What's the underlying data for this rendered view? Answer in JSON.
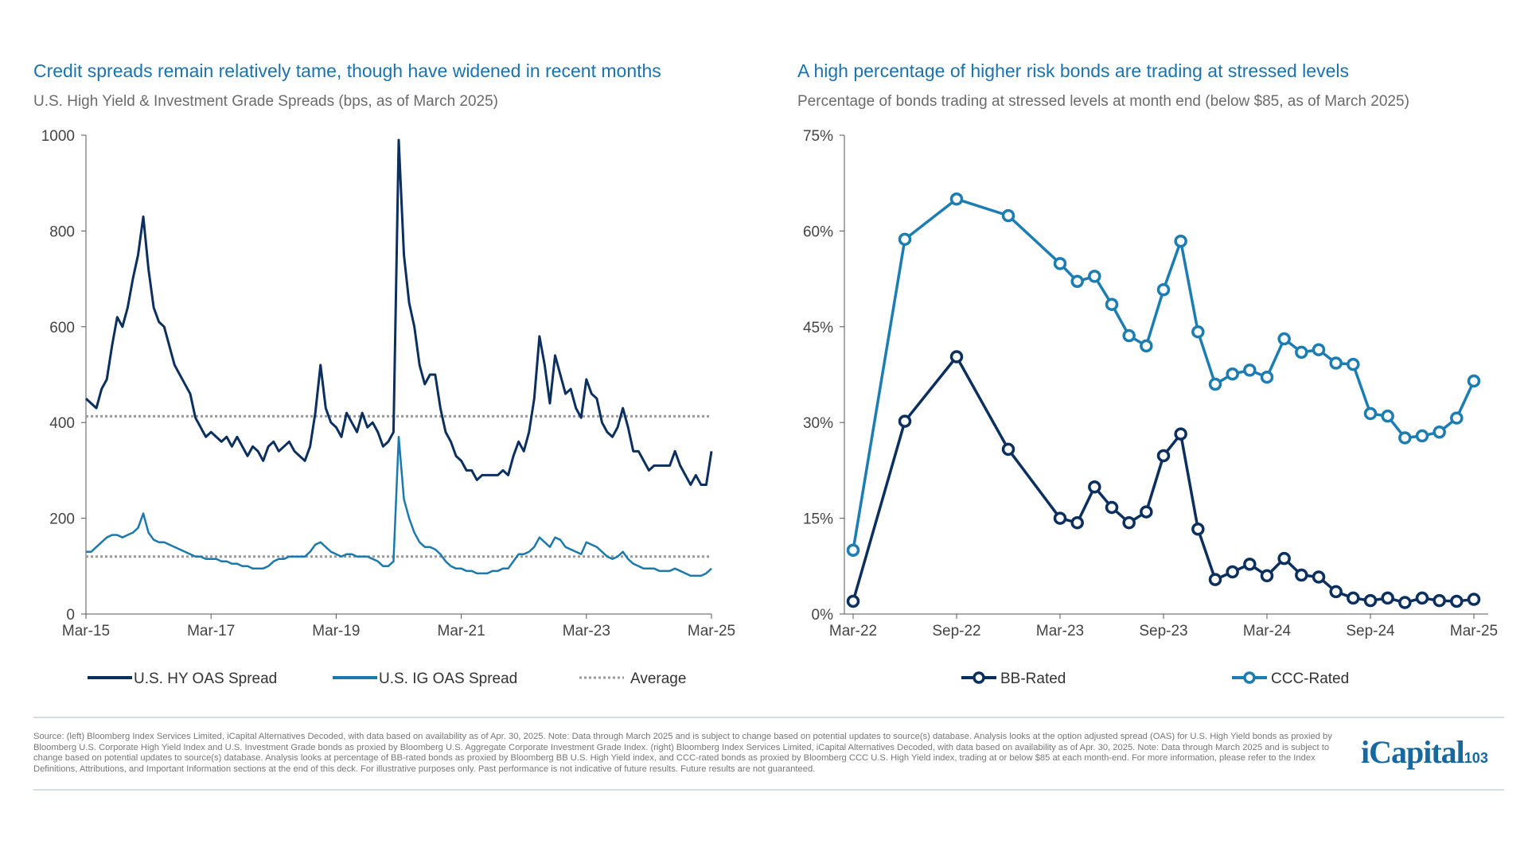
{
  "colors": {
    "hy": "#0b2f5f",
    "ig": "#1b79ad",
    "avg": "#9a9a9a",
    "bb": "#0b2f5f",
    "ccc": "#1b7db2",
    "title": "#1a72b0"
  },
  "chart_data": [
    {
      "type": "line",
      "title": "Credit spreads remain relatively tame, though have widened in recent months",
      "subtitle": "U.S. High Yield & Investment Grade Spreads (bps, as of March 2025)",
      "x_start": "Mar-15",
      "x_end": "Mar-25",
      "frequency": "monthly",
      "xticks": [
        "Mar-15",
        "Mar-17",
        "Mar-19",
        "Mar-21",
        "Mar-23",
        "Mar-25"
      ],
      "yticks": [
        "0",
        "200",
        "400",
        "600",
        "800",
        "1000"
      ],
      "ylim": [
        0,
        1000
      ],
      "legend_position": "bottom",
      "series": [
        {
          "name": "U.S. HY OAS Spread",
          "values": [
            450,
            440,
            430,
            470,
            490,
            560,
            620,
            600,
            640,
            700,
            750,
            830,
            720,
            640,
            610,
            600,
            560,
            520,
            500,
            480,
            460,
            410,
            390,
            370,
            380,
            370,
            360,
            370,
            350,
            370,
            350,
            330,
            350,
            340,
            320,
            350,
            360,
            340,
            350,
            360,
            340,
            330,
            320,
            350,
            420,
            520,
            430,
            400,
            390,
            370,
            420,
            400,
            380,
            420,
            390,
            400,
            380,
            350,
            360,
            380,
            990,
            750,
            650,
            600,
            520,
            480,
            500,
            500,
            430,
            380,
            360,
            330,
            320,
            300,
            300,
            280,
            290,
            290,
            290,
            290,
            300,
            290,
            330,
            360,
            340,
            380,
            450,
            580,
            520,
            440,
            540,
            500,
            460,
            470,
            430,
            410,
            490,
            460,
            450,
            400,
            380,
            370,
            390,
            430,
            390,
            340,
            340,
            320,
            300,
            310,
            310,
            310,
            310,
            340,
            310,
            290,
            270,
            290,
            270,
            270,
            340
          ]
        },
        {
          "name": "U.S. IG OAS Spread",
          "values": [
            130,
            130,
            140,
            150,
            160,
            165,
            165,
            160,
            165,
            170,
            180,
            210,
            170,
            155,
            150,
            150,
            145,
            140,
            135,
            130,
            125,
            120,
            120,
            115,
            115,
            115,
            110,
            110,
            105,
            105,
            100,
            100,
            95,
            95,
            95,
            100,
            110,
            115,
            115,
            120,
            120,
            120,
            120,
            130,
            145,
            150,
            140,
            130,
            125,
            120,
            125,
            125,
            120,
            120,
            120,
            115,
            110,
            100,
            100,
            110,
            370,
            240,
            200,
            170,
            150,
            140,
            140,
            135,
            125,
            110,
            100,
            95,
            95,
            90,
            90,
            85,
            85,
            85,
            90,
            90,
            95,
            95,
            110,
            125,
            125,
            130,
            140,
            160,
            150,
            140,
            160,
            155,
            140,
            135,
            130,
            125,
            150,
            145,
            140,
            130,
            120,
            115,
            120,
            130,
            115,
            105,
            100,
            95,
            95,
            95,
            90,
            90,
            90,
            95,
            90,
            85,
            80,
            80,
            80,
            85,
            95
          ]
        },
        {
          "name": "Average",
          "hy_average": 413,
          "ig_average": 120
        }
      ]
    },
    {
      "type": "line",
      "title": "A high percentage of higher risk bonds are trading at stressed levels",
      "subtitle": "Percentage of bonds trading at stressed levels at month end (below $85, as of March 2025)",
      "xticks": [
        "Mar-22",
        "Sep-22",
        "Mar-23",
        "Sep-23",
        "Mar-24",
        "Sep-24",
        "Mar-25"
      ],
      "yticks": [
        "0%",
        "15%",
        "30%",
        "45%",
        "60%",
        "75%"
      ],
      "ylim": [
        0,
        75
      ],
      "legend_position": "bottom",
      "x": [
        "Mar-22",
        "Jun-22",
        "Sep-22",
        "Dec-22",
        "Mar-23",
        "Apr-23",
        "May-23",
        "Jun-23",
        "Jul-23",
        "Aug-23",
        "Sep-23",
        "Oct-23",
        "Nov-23",
        "Dec-23",
        "Jan-24",
        "Feb-24",
        "Mar-24",
        "Apr-24",
        "May-24",
        "Jun-24",
        "Jul-24",
        "Aug-24",
        "Sep-24",
        "Oct-24",
        "Nov-24",
        "Dec-24",
        "Jan-25",
        "Feb-25",
        "Mar-25"
      ],
      "x_month_index": [
        0,
        3,
        6,
        9,
        12,
        13,
        14,
        15,
        16,
        17,
        18,
        19,
        20,
        21,
        22,
        23,
        24,
        25,
        26,
        27,
        28,
        29,
        30,
        31,
        32,
        33,
        34,
        35,
        36
      ],
      "series": [
        {
          "name": "BB-Rated",
          "values": [
            2.0,
            30.2,
            40.3,
            25.8,
            15.0,
            14.3,
            19.9,
            16.7,
            14.3,
            16.0,
            24.8,
            28.2,
            13.3,
            5.4,
            6.6,
            7.8,
            6.0,
            8.7,
            6.1,
            5.8,
            3.5,
            2.5,
            2.1,
            2.5,
            1.8,
            2.5,
            2.1,
            2.0,
            2.3
          ]
        },
        {
          "name": "CCC-Rated",
          "values": [
            10.0,
            58.7,
            65.0,
            62.4,
            54.9,
            52.1,
            52.9,
            48.5,
            43.6,
            42.0,
            50.8,
            58.4,
            44.2,
            36.0,
            37.6,
            38.2,
            37.1,
            43.1,
            41.0,
            41.4,
            39.3,
            39.1,
            31.4,
            31.0,
            27.6,
            27.9,
            28.5,
            30.7,
            36.5
          ]
        }
      ]
    }
  ],
  "footnote": "Source: (left) Bloomberg Index Services Limited, iCapital Alternatives Decoded, with data based on availability as of Apr. 30, 2025. Note: Data through March 2025 and is subject to change based on potential updates to source(s) database. Analysis looks at the option adjusted spread (OAS) for U.S. High Yield bonds as proxied by Bloomberg U.S. Corporate High Yield Index and U.S. Investment Grade bonds as proxied by Bloomberg U.S. Aggregate Corporate Investment Grade Index. (right) Bloomberg Index Services Limited, iCapital Alternatives Decoded, with data based on availability as of Apr. 30, 2025. Note: Data through March 2025 and is subject to change based on potential updates to source(s) database. Analysis looks at percentage of BB-rated bonds as proxied by Bloomberg BB U.S. High Yield index, and CCC-rated bonds as proxied by Bloomberg CCC U.S. High Yield index, trading at or below $85 at each month-end. For more information, please refer to the Index Definitions, Attributions, and Important Information sections at the end of this deck. For illustrative purposes only. Past performance is not indicative of future results. Future results are not guaranteed.",
  "logo": {
    "text": "iCapital",
    "page_number": "103"
  }
}
